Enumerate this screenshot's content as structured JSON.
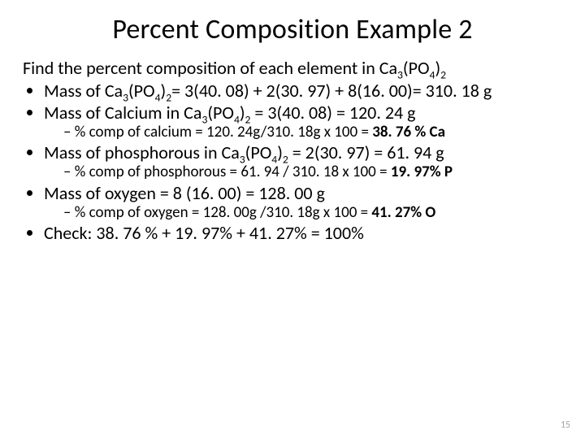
{
  "title": "Percent Composition Example 2",
  "intro_pre": "Find the percent composition of each element in Ca",
  "intro_s1": "3",
  "intro_mid1": "(PO",
  "intro_s2": "4",
  "intro_mid2": ")",
  "intro_s3": "2",
  "li1_a": "Mass of Ca",
  "li1_b": "(PO",
  "li1_c": ")",
  "li1_d": "=  3(40. 08) + 2(30. 97) + 8(16. 00)= 310. 18 g",
  "li2_a": "Mass of Calcium in Ca",
  "li2_b": "(PO",
  "li2_c": ")",
  "li2_d": " = 3(40. 08) = 120. 24 g",
  "li2_sub_a": "% comp of calcium = 120. 24g/310. 18g x 100 = ",
  "li2_sub_b": "38. 76 % Ca",
  "li3_a": "Mass of phosphorous in Ca",
  "li3_b": "(PO",
  "li3_c": ")",
  "li3_d": " = 2(30. 97) = 61. 94 g",
  "li3_sub_a": "% comp of phosphorous = 61. 94 / 310. 18 x 100 = ",
  "li3_sub_b": "19. 97% P",
  "li4": "Mass of oxygen = 8 (16. 00) = 128. 00 g",
  "li4_sub_a": "% comp of oxygen = 128. 00g /310. 18g x 100 = ",
  "li4_sub_b": "41. 27% O",
  "li5": "Check:  38. 76 % + 19. 97% + 41. 27% = 100%",
  "s3": "3",
  "s4": "4",
  "s2": "2",
  "pagenum": "15"
}
